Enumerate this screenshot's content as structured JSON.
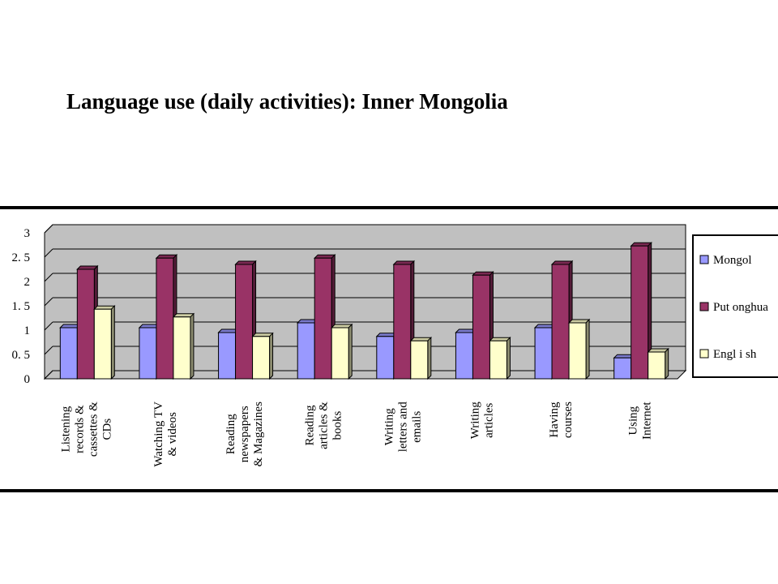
{
  "page": {
    "title": "Language use (daily activities): Inner Mongolia"
  },
  "chart_data": {
    "type": "bar",
    "title": "",
    "xlabel": "",
    "ylabel": "",
    "ylim": [
      0,
      3
    ],
    "yticks": [
      {
        "value": 0,
        "label": "0"
      },
      {
        "value": 0.5,
        "label": "0. 5"
      },
      {
        "value": 1,
        "label": "1"
      },
      {
        "value": 1.5,
        "label": "1. 5"
      },
      {
        "value": 2,
        "label": "2"
      },
      {
        "value": 2.5,
        "label": "2. 5"
      },
      {
        "value": 3,
        "label": "3"
      }
    ],
    "grid": true,
    "legend_position": "right",
    "categories": [
      [
        "Listening",
        "records &",
        "cassettes &",
        "CDs"
      ],
      [
        "Watching TV",
        "& videos"
      ],
      [
        "Reading",
        "newspapers",
        "& Magazines"
      ],
      [
        "Reading",
        "articles &",
        "books"
      ],
      [
        "Writing",
        "letters and",
        "emails"
      ],
      [
        "Writing",
        "articles"
      ],
      [
        "Having",
        "courses"
      ],
      [
        "Using",
        "Internet"
      ]
    ],
    "series": [
      {
        "name": "Mongol",
        "color": "#9999ff",
        "values": [
          1.05,
          1.05,
          0.95,
          1.15,
          0.87,
          0.95,
          1.05,
          0.43
        ]
      },
      {
        "name": "Put onghua",
        "color": "#993366",
        "values": [
          2.25,
          2.48,
          2.35,
          2.48,
          2.35,
          2.13,
          2.35,
          2.73
        ]
      },
      {
        "name": "Engl i sh",
        "color": "#ffffcc",
        "values": [
          1.43,
          1.27,
          0.87,
          1.05,
          0.78,
          0.78,
          1.15,
          0.55
        ]
      }
    ],
    "colors": {
      "plot_background": "#c0c0c0",
      "gridline": "#000000",
      "bar_outline": "#000000"
    }
  }
}
